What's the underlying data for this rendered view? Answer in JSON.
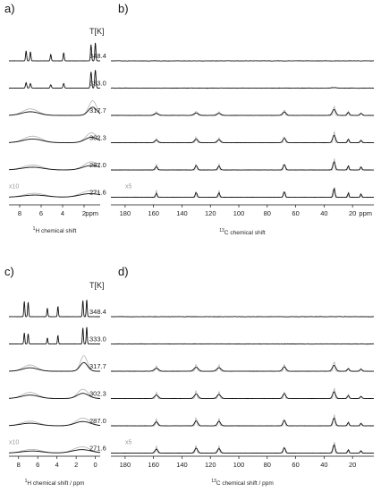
{
  "chart_data": [
    {
      "panel": "a)",
      "type": "line",
      "nucleus": "1H",
      "xlabel_sup": "1",
      "xlabel_main": "H chemical shift",
      "xlim": [
        9,
        0.5
      ],
      "ticks": [
        8,
        6,
        4,
        2
      ],
      "tick_unit": "ppm",
      "column_header": "T[K]",
      "scale_note": "x10",
      "series": [
        {
          "temperature": "348.4",
          "peaks": [
            [
              7.4,
              0.55,
              0.05
            ],
            [
              7.0,
              0.5,
              0.05
            ],
            [
              5.1,
              0.35,
              0.05
            ],
            [
              3.9,
              0.45,
              0.05
            ],
            [
              1.35,
              0.9,
              0.05
            ],
            [
              0.95,
              1.0,
              0.05
            ]
          ]
        },
        {
          "temperature": "333.0",
          "peaks": [
            [
              7.4,
              0.3,
              0.06
            ],
            [
              7.0,
              0.25,
              0.06
            ],
            [
              5.1,
              0.18,
              0.06
            ],
            [
              3.9,
              0.25,
              0.06
            ],
            [
              1.35,
              0.9,
              0.06
            ],
            [
              0.95,
              1.0,
              0.06
            ]
          ]
        },
        {
          "temperature": "317.7",
          "peaks": [
            [
              7.0,
              0.2,
              0.8
            ],
            [
              1.2,
              0.45,
              0.4
            ]
          ]
        },
        {
          "temperature": "302.3",
          "peaks": [
            [
              6.8,
              0.2,
              0.9
            ],
            [
              1.3,
              0.3,
              0.6
            ]
          ]
        },
        {
          "temperature": "287.0",
          "peaks": [
            [
              6.8,
              0.15,
              1.0
            ],
            [
              1.3,
              0.25,
              0.8
            ]
          ]
        },
        {
          "temperature": "271.6",
          "peaks": [
            [
              6.6,
              0.12,
              1.1
            ],
            [
              1.4,
              0.2,
              1.0
            ]
          ]
        }
      ]
    },
    {
      "panel": "b)",
      "type": "line",
      "nucleus": "13C",
      "xlabel_sup": "13",
      "xlabel_main": "C chemical shift",
      "xlim": [
        190,
        5
      ],
      "ticks": [
        180,
        160,
        140,
        120,
        100,
        80,
        60,
        40,
        20
      ],
      "tick_unit": "ppm",
      "scale_note": "x5",
      "series": [
        {
          "temperature": "348.4",
          "peaks": []
        },
        {
          "temperature": "333.0",
          "peaks": [
            [
              33,
              0.06,
              2.0
            ]
          ]
        },
        {
          "temperature": "317.7",
          "peaks": [
            [
              158,
              0.2,
              1.5
            ],
            [
              130,
              0.25,
              1.5
            ],
            [
              114,
              0.2,
              1.5
            ],
            [
              68,
              0.35,
              1.2
            ],
            [
              33,
              0.6,
              1.2
            ],
            [
              23,
              0.3,
              0.8
            ],
            [
              14,
              0.2,
              0.8
            ]
          ]
        },
        {
          "temperature": "302.3",
          "peaks": [
            [
              158,
              0.25,
              1.2
            ],
            [
              130,
              0.35,
              1.2
            ],
            [
              114,
              0.3,
              1.2
            ],
            [
              68,
              0.45,
              1.0
            ],
            [
              33,
              0.75,
              1.0
            ],
            [
              23,
              0.35,
              0.6
            ],
            [
              14,
              0.25,
              0.6
            ]
          ]
        },
        {
          "temperature": "287.0",
          "peaks": [
            [
              158,
              0.35,
              0.8
            ],
            [
              130,
              0.45,
              0.8
            ],
            [
              114,
              0.4,
              0.8
            ],
            [
              68,
              0.55,
              0.8
            ],
            [
              33,
              0.85,
              0.8
            ],
            [
              23,
              0.45,
              0.5
            ],
            [
              14,
              0.35,
              0.5
            ]
          ]
        },
        {
          "temperature": "271.6",
          "peaks": [
            [
              158,
              0.4,
              0.6
            ],
            [
              130,
              0.5,
              0.6
            ],
            [
              114,
              0.45,
              0.6
            ],
            [
              68,
              0.6,
              0.6
            ],
            [
              33,
              0.95,
              0.6
            ],
            [
              23,
              0.5,
              0.4
            ],
            [
              14,
              0.4,
              0.4
            ]
          ]
        }
      ]
    },
    {
      "panel": "c)",
      "type": "line",
      "nucleus": "1H",
      "xlabel_sup": "1",
      "xlabel_main": "H chemical shift / ppm",
      "xlim": [
        9,
        -0.5
      ],
      "ticks": [
        8,
        6,
        4,
        2,
        0
      ],
      "tick_unit": "",
      "column_header": "T[K]",
      "scale_note": "x10",
      "series": [
        {
          "temperature": "348.4",
          "peaks": [
            [
              7.4,
              0.9,
              0.05
            ],
            [
              7.0,
              0.85,
              0.05
            ],
            [
              5.0,
              0.5,
              0.05
            ],
            [
              3.9,
              0.6,
              0.05
            ],
            [
              1.3,
              0.95,
              0.05
            ],
            [
              0.9,
              1.0,
              0.05
            ]
          ]
        },
        {
          "temperature": "333.0",
          "peaks": [
            [
              7.4,
              0.65,
              0.05
            ],
            [
              7.0,
              0.6,
              0.05
            ],
            [
              5.0,
              0.35,
              0.05
            ],
            [
              3.9,
              0.5,
              0.05
            ],
            [
              1.3,
              0.95,
              0.05
            ],
            [
              0.9,
              1.0,
              0.05
            ]
          ]
        },
        {
          "temperature": "317.7",
          "peaks": [
            [
              6.8,
              0.2,
              0.8
            ],
            [
              1.2,
              0.5,
              0.4
            ]
          ]
        },
        {
          "temperature": "302.3",
          "peaks": [
            [
              6.8,
              0.2,
              0.9
            ],
            [
              1.3,
              0.3,
              0.6
            ]
          ]
        },
        {
          "temperature": "287.0",
          "peaks": [
            [
              6.8,
              0.15,
              1.0
            ],
            [
              1.3,
              0.25,
              0.8
            ]
          ]
        },
        {
          "temperature": "271.6",
          "peaks": [
            [
              6.6,
              0.12,
              1.1
            ],
            [
              1.4,
              0.2,
              1.0
            ]
          ]
        }
      ]
    },
    {
      "panel": "d)",
      "type": "line",
      "nucleus": "13C",
      "xlabel_sup": "13",
      "xlabel_main": "C chemical shift / ppm",
      "xlim": [
        190,
        5
      ],
      "ticks": [
        180,
        160,
        140,
        120,
        100,
        80,
        60,
        40,
        20
      ],
      "tick_unit": "",
      "scale_note": "x5",
      "series": [
        {
          "temperature": "348.4",
          "peaks": []
        },
        {
          "temperature": "333.0",
          "peaks": []
        },
        {
          "temperature": "317.7",
          "peaks": [
            [
              158,
              0.3,
              1.5
            ],
            [
              130,
              0.4,
              1.5
            ],
            [
              114,
              0.35,
              1.5
            ],
            [
              68,
              0.45,
              1.2
            ],
            [
              33,
              0.6,
              1.2
            ],
            [
              23,
              0.25,
              0.8
            ],
            [
              14,
              0.2,
              0.8
            ]
          ]
        },
        {
          "temperature": "302.3",
          "peaks": [
            [
              158,
              0.35,
              1.3
            ],
            [
              130,
              0.45,
              1.3
            ],
            [
              114,
              0.4,
              1.3
            ],
            [
              68,
              0.5,
              1.0
            ],
            [
              33,
              0.7,
              1.0
            ],
            [
              23,
              0.3,
              0.7
            ],
            [
              14,
              0.2,
              0.7
            ]
          ]
        },
        {
          "temperature": "287.0",
          "peaks": [
            [
              158,
              0.4,
              1.1
            ],
            [
              130,
              0.5,
              1.1
            ],
            [
              114,
              0.45,
              1.1
            ],
            [
              68,
              0.55,
              0.9
            ],
            [
              33,
              0.8,
              0.9
            ],
            [
              23,
              0.35,
              0.6
            ],
            [
              14,
              0.25,
              0.6
            ]
          ]
        },
        {
          "temperature": "271.6",
          "peaks": [
            [
              158,
              0.4,
              1.0
            ],
            [
              130,
              0.5,
              1.0
            ],
            [
              114,
              0.45,
              1.0
            ],
            [
              68,
              0.55,
              0.8
            ],
            [
              33,
              0.85,
              0.8
            ],
            [
              23,
              0.35,
              0.5
            ],
            [
              14,
              0.25,
              0.5
            ]
          ]
        }
      ]
    }
  ],
  "colors": {
    "trace": "#111111",
    "overlay": "#a8a8a8",
    "text": "#222222"
  }
}
